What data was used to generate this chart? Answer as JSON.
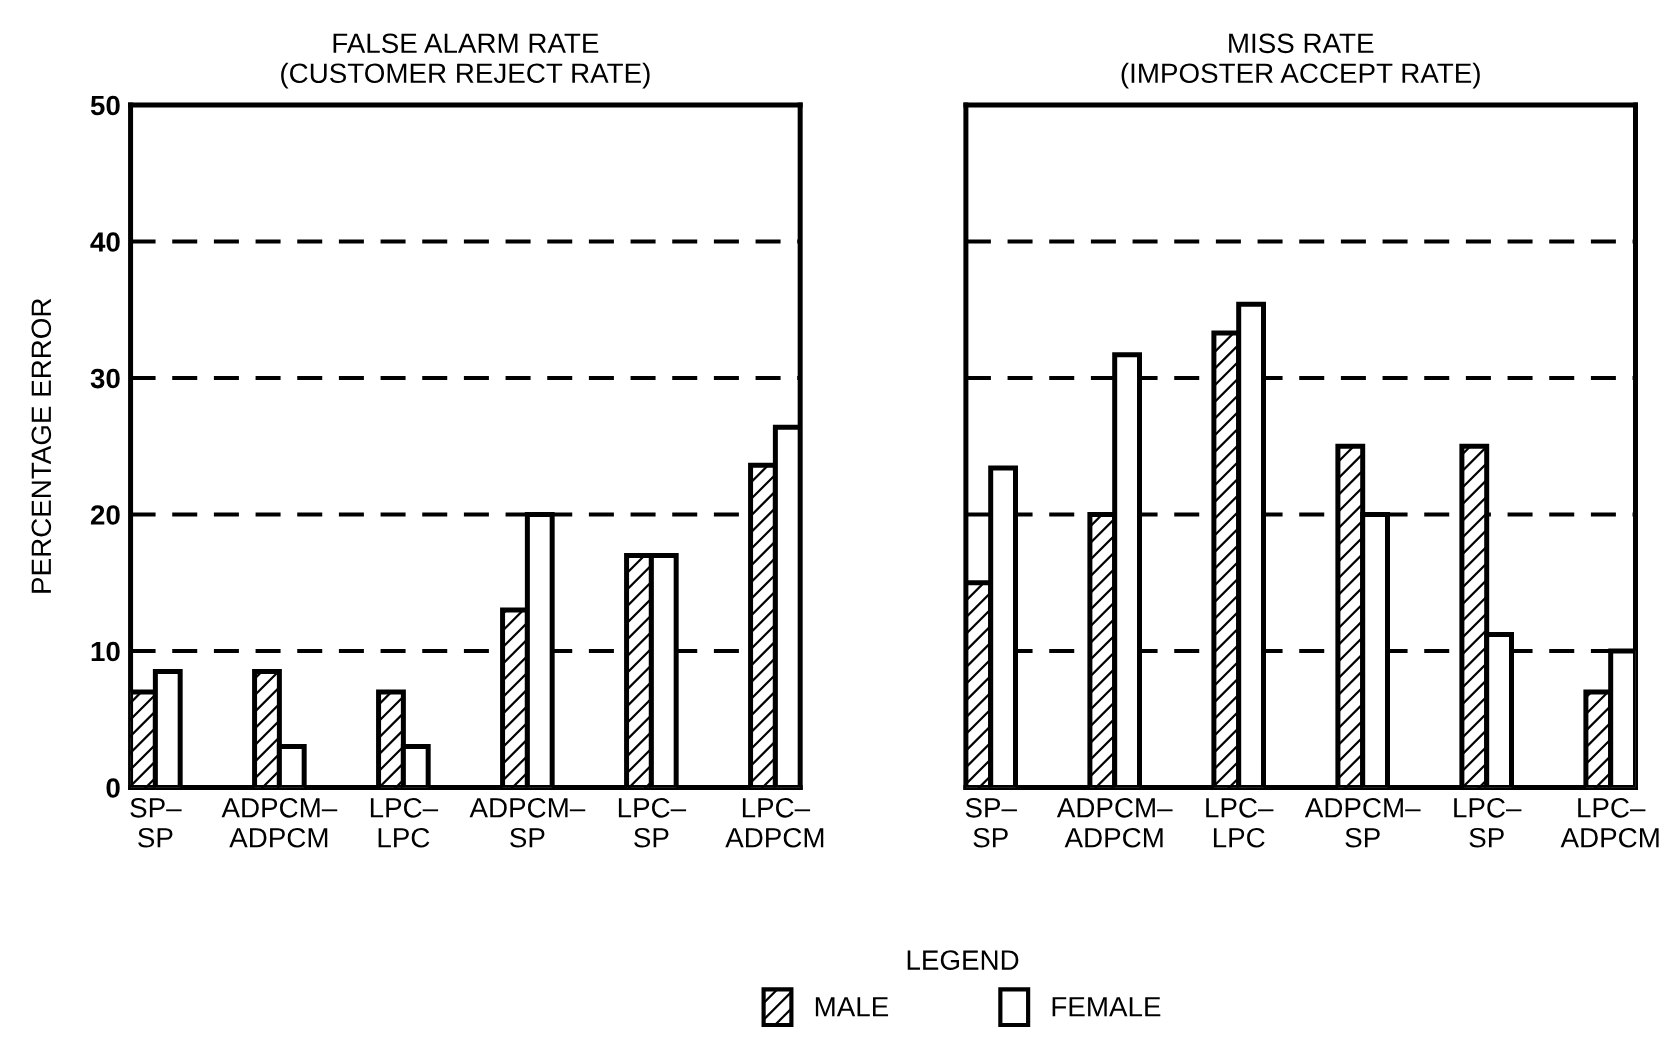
{
  "chart_data": [
    {
      "type": "bar",
      "title": "FALSE ALARM RATE\n(CUSTOMER REJECT RATE)",
      "ylabel": "PERCENTAGE ERROR",
      "categories": [
        "SP–\nSP",
        "ADPCM–\nADPCM",
        "LPC–\nLPC",
        "ADPCM–\nSP",
        "LPC–\nSP",
        "LPC–\nADPCM"
      ],
      "series": [
        {
          "name": "MALE",
          "color": "#000000",
          "values": [
            7,
            8.5,
            7,
            13,
            17,
            23.6
          ]
        },
        {
          "name": "FEMALE",
          "color": "#000000",
          "values": [
            8.5,
            3,
            3,
            20,
            17,
            26.4
          ]
        }
      ],
      "ylim": [
        0,
        50
      ],
      "yticks": [
        0,
        10,
        20,
        30,
        40,
        50
      ],
      "grid": "y",
      "legend": "bottom",
      "legend_title": "LEGEND"
    },
    {
      "type": "bar",
      "title": "MISS RATE\n(IMPOSTER ACCEPT RATE)",
      "categories": [
        "SP–\nSP",
        "ADPCM–\nADPCM",
        "LPC–\nLPC",
        "ADPCM–\nSP",
        "LPC–\nSP",
        "LPC–\nADPCM"
      ],
      "series": [
        {
          "color": "#000000",
          "values": [
            15,
            20,
            33.3,
            25,
            25,
            7
          ]
        },
        {
          "color": "#000000",
          "values": [
            23.4,
            31.7,
            35.4,
            20,
            11.2,
            10
          ]
        }
      ],
      "ylim": [
        0,
        50
      ],
      "yticks": [
        0,
        10,
        20,
        30,
        40,
        50
      ],
      "grid": "y",
      "tick_labels": "x"
    }
  ]
}
